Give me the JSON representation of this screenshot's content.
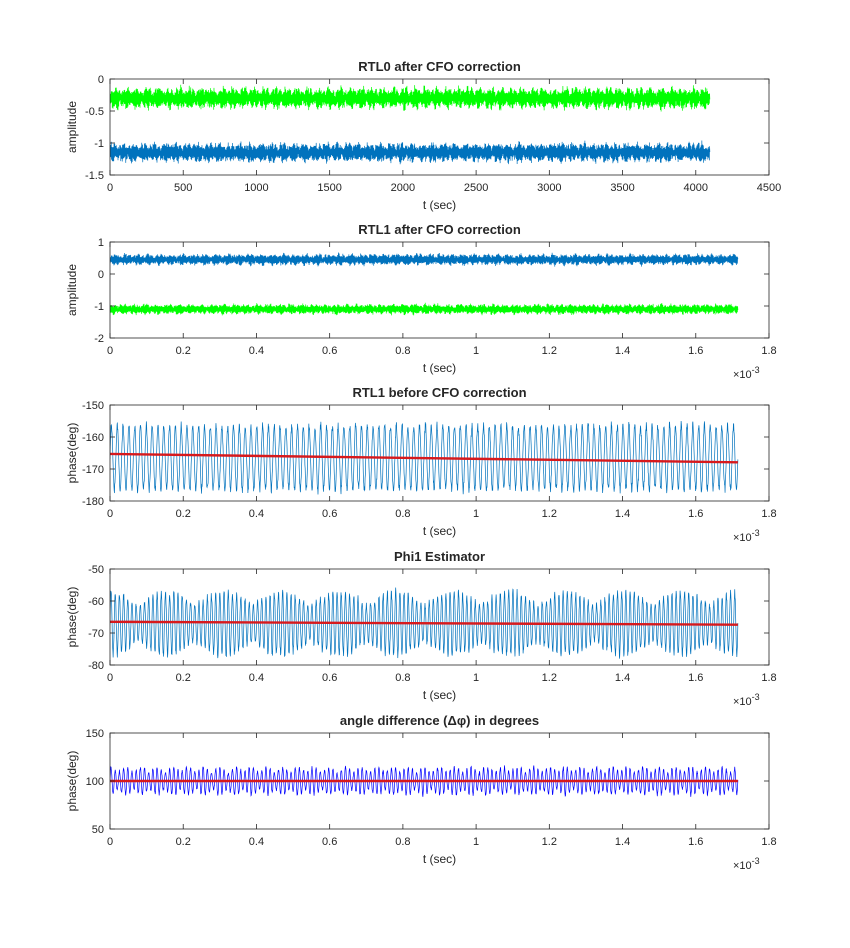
{
  "figure": {
    "background": "#ffffff",
    "axes_color": "#262626"
  },
  "chart_data": [
    {
      "type": "line",
      "title": "RTL0 after CFO correction",
      "xlabel": "t (sec)",
      "ylabel": "amplitude",
      "xlim": [
        0,
        4500
      ],
      "ylim": [
        -1.5,
        0
      ],
      "xticks": [
        "0",
        "500",
        "1000",
        "1500",
        "2000",
        "2500",
        "3000",
        "3500",
        "4000",
        "4500"
      ],
      "yticks": [
        "-1.5",
        "-1",
        "-0.5",
        "0"
      ],
      "x_exponent": "",
      "series": [
        {
          "color": "#00ff00",
          "x_range": [
            0,
            4096
          ],
          "center": -0.3,
          "amplitude": 0.19,
          "style": "dense",
          "cycles": 420
        },
        {
          "color": "#0072bd",
          "x_range": [
            0,
            4096
          ],
          "center": -1.15,
          "amplitude": 0.17,
          "style": "dense",
          "cycles": 420
        }
      ],
      "trend_lines": []
    },
    {
      "type": "line",
      "title": "RTL1 after CFO correction",
      "xlabel": "t (sec)",
      "ylabel": "amplitude",
      "xlim": [
        0,
        0.0018
      ],
      "ylim": [
        -2,
        1
      ],
      "xticks": [
        "0",
        "0.2",
        "0.4",
        "0.6",
        "0.8",
        "1",
        "1.2",
        "1.4",
        "1.6",
        "1.8"
      ],
      "yticks": [
        "-2",
        "-1",
        "0",
        "1"
      ],
      "x_exponent": "-3",
      "series": [
        {
          "color": "#0072bd",
          "x_range": [
            0,
            0.001715
          ],
          "center": 0.45,
          "amplitude": 0.2,
          "style": "dense",
          "cycles": 420
        },
        {
          "color": "#00ff00",
          "x_range": [
            0,
            0.001715
          ],
          "center": -1.1,
          "amplitude": 0.18,
          "style": "dense",
          "cycles": 420
        }
      ],
      "trend_lines": []
    },
    {
      "type": "line",
      "title": "RTL1 before CFO correction",
      "xlabel": "t (sec)",
      "ylabel": "phase(deg)",
      "xlim": [
        0,
        0.0018
      ],
      "ylim": [
        -180,
        -150
      ],
      "xticks": [
        "0",
        "0.2",
        "0.4",
        "0.6",
        "0.8",
        "1",
        "1.2",
        "1.4",
        "1.6",
        "1.8"
      ],
      "yticks": [
        "-180",
        "-170",
        "-160",
        "-150"
      ],
      "x_exponent": "-3",
      "series": [
        {
          "color": "#0072bd",
          "x_range": [
            0,
            0.001715
          ],
          "center": -166.5,
          "amplitude": 11,
          "style": "oscillation",
          "cycles": 108
        }
      ],
      "trend_lines": [
        {
          "color": "#d7191c",
          "x": [
            0,
            0.001715
          ],
          "y": [
            -165.3,
            -167.9
          ]
        }
      ]
    },
    {
      "type": "line",
      "title": "Phi1 Estimator",
      "xlabel": "t (sec)",
      "ylabel": "phase(deg)",
      "xlim": [
        0,
        0.0018
      ],
      "ylim": [
        -80,
        -50
      ],
      "xticks": [
        "0",
        "0.2",
        "0.4",
        "0.6",
        "0.8",
        "1",
        "1.2",
        "1.4",
        "1.6",
        "1.8"
      ],
      "yticks": [
        "-80",
        "-70",
        "-60",
        "-50"
      ],
      "x_exponent": "-3",
      "series": [
        {
          "color": "#0072bd",
          "x_range": [
            0,
            0.001715
          ],
          "center": -67,
          "amplitude": 11,
          "style": "oscillation",
          "cycles": 150,
          "beat_cycles": 11
        }
      ],
      "trend_lines": [
        {
          "color": "#d7191c",
          "x": [
            0,
            0.001715
          ],
          "y": [
            -66.5,
            -67.4
          ]
        }
      ]
    },
    {
      "type": "line",
      "title": "angle difference (Δφ) in degrees",
      "xlabel": "t (sec)",
      "ylabel": "phase(deg)",
      "xlim": [
        0,
        0.0018
      ],
      "ylim": [
        50,
        150
      ],
      "xticks": [
        "0",
        "0.2",
        "0.4",
        "0.6",
        "0.8",
        "1",
        "1.2",
        "1.4",
        "1.6",
        "1.8"
      ],
      "yticks": [
        "50",
        "100",
        "150"
      ],
      "x_exponent": "-3",
      "series": [
        {
          "color": "#0000ff",
          "x_range": [
            0,
            0.001715
          ],
          "center": 100,
          "amplitude": 16,
          "style": "oscillation",
          "cycles": 150,
          "beat_cycles": 40
        }
      ],
      "trend_lines": [
        {
          "color": "#d7191c",
          "x": [
            0,
            0.001715
          ],
          "y": [
            100,
            100
          ]
        }
      ]
    }
  ]
}
